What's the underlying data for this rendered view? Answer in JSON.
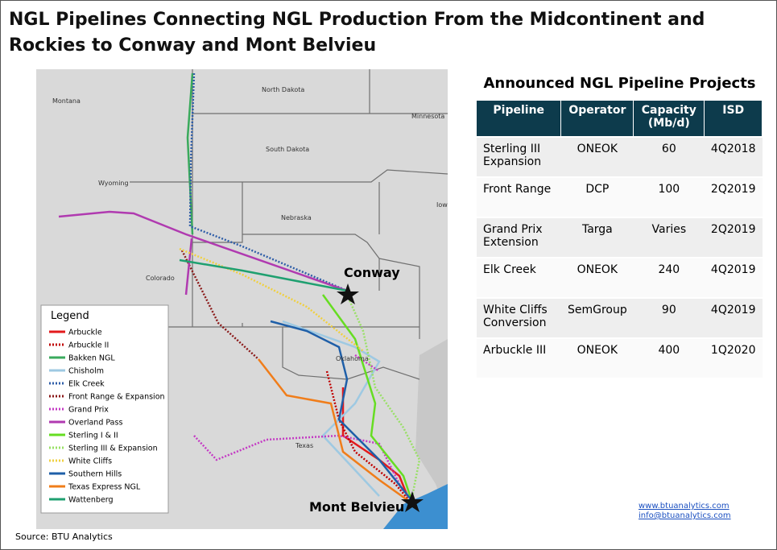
{
  "header": {
    "title": "NGL Pipelines Connecting NGL Production From the Midcontinent and Rockies to Conway and Mont Belvieu"
  },
  "map": {
    "labels": [
      "Montana",
      "North Dakota",
      "Minnesota",
      "South Dakota",
      "Wyoming",
      "Nebraska",
      "Iowa",
      "Colorado",
      "Oklahoma",
      "Texas"
    ],
    "hubs": [
      "Conway",
      "Mont Belvieu"
    ],
    "legend": {
      "title": "Legend",
      "items": [
        {
          "name": "Arbuckle",
          "color": "#e31a1c",
          "style": "solid"
        },
        {
          "name": "Arbuckle II",
          "color": "#c00000",
          "style": "dotted"
        },
        {
          "name": "Bakken NGL",
          "color": "#3aaa5c",
          "style": "solid"
        },
        {
          "name": "Chisholm",
          "color": "#9ec9e2",
          "style": "solid"
        },
        {
          "name": "Elk Creek",
          "color": "#2f5ea8",
          "style": "dotted"
        },
        {
          "name": "Front Range & Expansion",
          "color": "#8b1a1a",
          "style": "dotted"
        },
        {
          "name": "Grand Prix",
          "color": "#c43ac4",
          "style": "dotted"
        },
        {
          "name": "Overland Pass",
          "color": "#b03ab0",
          "style": "solid"
        },
        {
          "name": "Sterling I & II",
          "color": "#66dd22",
          "style": "solid"
        },
        {
          "name": "Sterling III & Expansion",
          "color": "#99e066",
          "style": "dotted"
        },
        {
          "name": "White Cliffs",
          "color": "#f0d040",
          "style": "dotted"
        },
        {
          "name": "Southern Hills",
          "color": "#1f5fa8",
          "style": "solid"
        },
        {
          "name": "Texas Express NGL",
          "color": "#f07d1a",
          "style": "solid"
        },
        {
          "name": "Wattenberg",
          "color": "#1fa070",
          "style": "solid"
        }
      ]
    }
  },
  "table": {
    "title": "Announced NGL Pipeline Projects",
    "columns": [
      "Pipeline",
      "Operator",
      "Capacity (Mb/d)",
      "ISD"
    ],
    "rows": [
      [
        "Sterling III Expansion",
        "ONEOK",
        "60",
        "4Q2018"
      ],
      [
        "Front Range",
        "DCP",
        "100",
        "2Q2019"
      ],
      [
        "Grand Prix Extension",
        "Targa",
        "Varies",
        "2Q2019"
      ],
      [
        "Elk Creek",
        "ONEOK",
        "240",
        "4Q2019"
      ],
      [
        "White Cliffs Conversion",
        "SemGroup",
        "90",
        "4Q2019"
      ],
      [
        "Arbuckle III",
        "ONEOK",
        "400",
        "1Q2020"
      ]
    ]
  },
  "footer": {
    "source": "Source: BTU Analytics",
    "links": [
      "www.btuanalytics.com",
      "info@btuanalytics.com"
    ]
  }
}
